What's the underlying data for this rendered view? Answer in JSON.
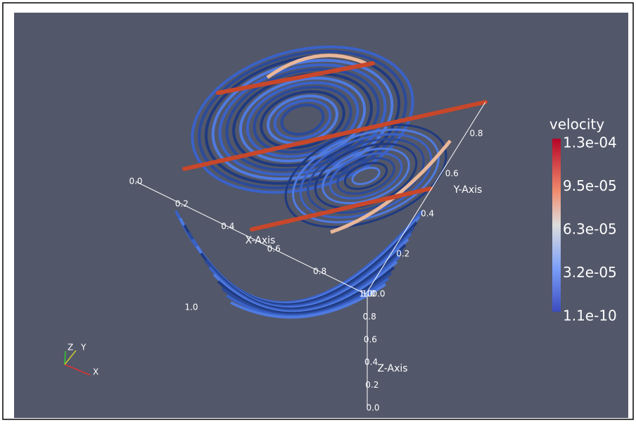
{
  "viewport": {
    "colorbar": {
      "title": "velocity",
      "labels": [
        "1.3e-04",
        "9.5e-05",
        "6.3e-05",
        "3.2e-05",
        "1.1e-10"
      ]
    },
    "axes": {
      "x": {
        "label": "X-Axis",
        "ticks": [
          "0.0",
          "0.2",
          "0.4",
          "0.6",
          "0.8",
          "1.0"
        ]
      },
      "y": {
        "label": "Y-Axis",
        "ticks": [
          "0.0",
          "0.2",
          "0.4",
          "0.6",
          "0.8"
        ]
      },
      "z": {
        "label": "Z-Axis",
        "ticks": [
          "1.0",
          "0.8",
          "0.6",
          "0.4",
          "0.2",
          "0.0"
        ]
      }
    },
    "extra_label": "1.0",
    "orientation_axes": [
      "X",
      "Y",
      "Z"
    ]
  }
}
